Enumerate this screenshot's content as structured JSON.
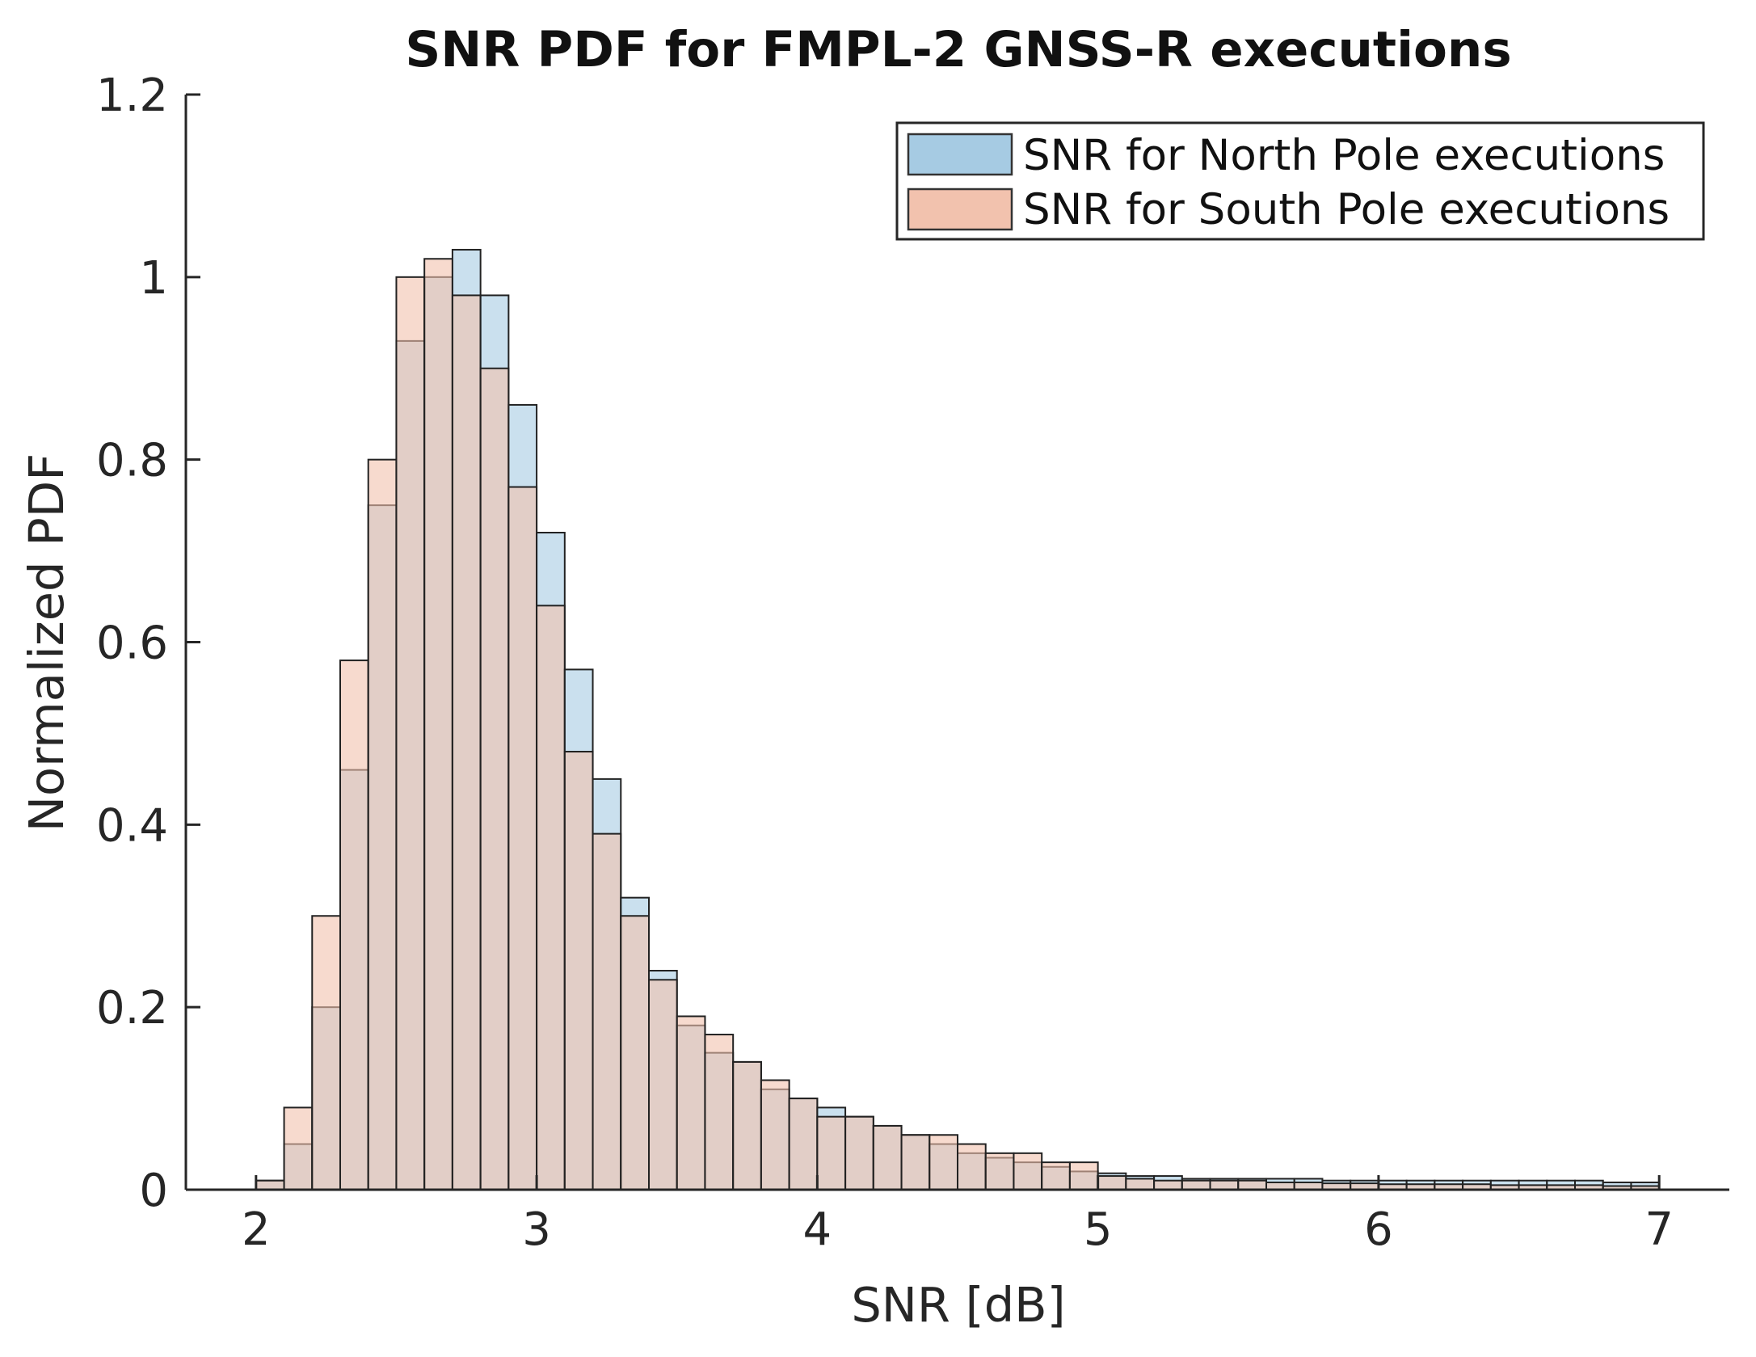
{
  "chart_data": {
    "type": "bar",
    "subtype": "overlapping-histogram",
    "title": "SNR PDF for FMPL-2 GNSS-R executions",
    "xlabel": "SNR [dB]",
    "ylabel": "Normalized PDF",
    "xlim": [
      1.75,
      7.25
    ],
    "ylim": [
      0,
      1.2
    ],
    "xticks": [
      2,
      3,
      4,
      5,
      6,
      7
    ],
    "xtick_labels": [
      "2",
      "3",
      "4",
      "5",
      "6",
      "7"
    ],
    "yticks": [
      0,
      0.2,
      0.4,
      0.6,
      0.8,
      1,
      1.2
    ],
    "ytick_labels": [
      "0",
      "0.2",
      "0.4",
      "0.6",
      "0.8",
      "1",
      "1.2"
    ],
    "bin_start": 2.0,
    "bin_width": 0.1,
    "legend_position": "top-right",
    "series": [
      {
        "name": "SNR for North Pole executions",
        "color": "#a6cbe3",
        "values": [
          0.01,
          0.05,
          0.2,
          0.46,
          0.75,
          0.93,
          1.0,
          1.03,
          0.98,
          0.86,
          0.72,
          0.57,
          0.45,
          0.32,
          0.24,
          0.18,
          0.15,
          0.14,
          0.11,
          0.1,
          0.09,
          0.08,
          0.07,
          0.06,
          0.05,
          0.04,
          0.035,
          0.03,
          0.025,
          0.02,
          0.018,
          0.015,
          0.015,
          0.012,
          0.012,
          0.012,
          0.012,
          0.012,
          0.01,
          0.01,
          0.01,
          0.01,
          0.01,
          0.01,
          0.01,
          0.01,
          0.01,
          0.01,
          0.008,
          0.008
        ]
      },
      {
        "name": "SNR for South Pole executions",
        "color": "#f2c2ae",
        "values": [
          0.01,
          0.09,
          0.3,
          0.58,
          0.8,
          1.0,
          1.02,
          0.98,
          0.9,
          0.77,
          0.64,
          0.48,
          0.39,
          0.3,
          0.23,
          0.19,
          0.17,
          0.14,
          0.12,
          0.1,
          0.08,
          0.08,
          0.07,
          0.06,
          0.06,
          0.05,
          0.04,
          0.04,
          0.03,
          0.03,
          0.015,
          0.012,
          0.01,
          0.01,
          0.01,
          0.01,
          0.008,
          0.008,
          0.007,
          0.007,
          0.006,
          0.006,
          0.006,
          0.006,
          0.005,
          0.005,
          0.005,
          0.005,
          0.004,
          0.004
        ]
      }
    ]
  }
}
